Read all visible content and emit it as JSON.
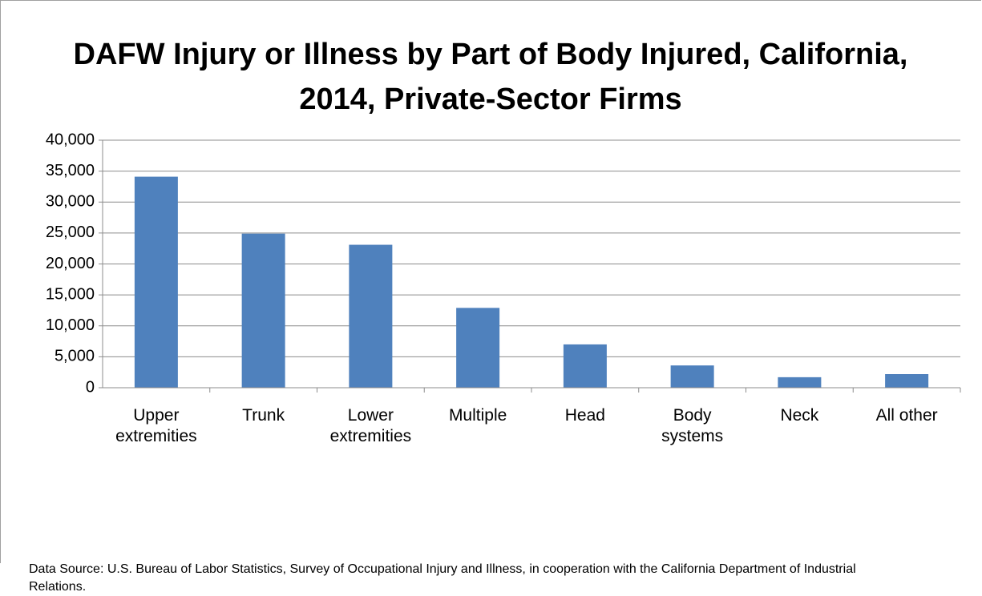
{
  "chart_data": {
    "type": "bar",
    "title": "DAFW Injury or Illness by Part of Body Injured, California, 2014, Private-Sector Firms",
    "categories": [
      "Upper extremities",
      "Trunk",
      "Lower extremities",
      "Multiple",
      "Head",
      "Body systems",
      "Neck",
      "All other"
    ],
    "values": [
      34100,
      24900,
      23100,
      12900,
      7000,
      3600,
      1700,
      2200
    ],
    "color": "#4f81bd",
    "ylim": [
      0,
      40000
    ],
    "yticks": [
      0,
      {
        "value": 5000,
        "label": "5,000"
      },
      {
        "value": 10000,
        "label": "10,000"
      },
      {
        "value": 15000,
        "label": "15,000"
      },
      {
        "value": 20000,
        "label": "20,000"
      },
      {
        "value": 25000,
        "label": "25,000"
      },
      {
        "value": 30000,
        "label": "30,000"
      },
      {
        "value": 35000,
        "label": "35,000"
      },
      {
        "value": 40000,
        "label": "40,000"
      }
    ],
    "grid": true,
    "source": "Data Source: U.S. Bureau of Labor Statistics, Survey of Occupational Injury and Illness, in cooperation with the California Department of Industrial Relations."
  }
}
